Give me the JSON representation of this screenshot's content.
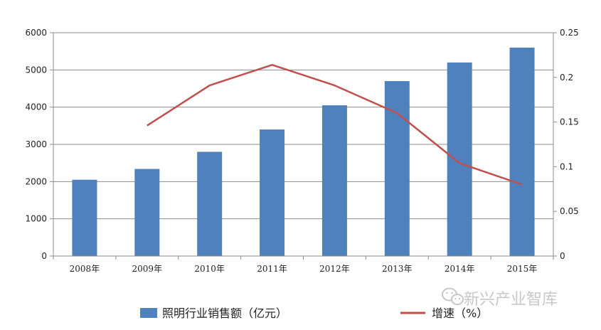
{
  "chart_data": {
    "type": "bar",
    "categories": [
      "2008年",
      "2009年",
      "2010年",
      "2011年",
      "2012年",
      "2013年",
      "2014年",
      "2015年"
    ],
    "series": [
      {
        "name": "照明行业销售额（亿元）",
        "type": "bar",
        "axis": "left",
        "color": "#4f81bd",
        "values": [
          2050,
          2340,
          2800,
          3400,
          4050,
          4700,
          5200,
          5600
        ]
      },
      {
        "name": "增速（%）",
        "type": "line",
        "axis": "right",
        "color": "#c0504d",
        "values": [
          null,
          0.146,
          0.191,
          0.214,
          0.191,
          0.16,
          0.104,
          0.08
        ]
      }
    ],
    "y_left": {
      "min": 0,
      "max": 6000,
      "ticks": [
        "0",
        "1000",
        "2000",
        "3000",
        "4000",
        "5000",
        "6000"
      ]
    },
    "y_right": {
      "min": 0,
      "max": 0.25,
      "ticks": [
        "0",
        "0.05",
        "0.1",
        "0.15",
        "0.2",
        "0.25"
      ]
    },
    "grid": true,
    "legend_position": "bottom"
  },
  "watermark": {
    "text": "新兴产业智库",
    "icon": "wechat-icon"
  }
}
